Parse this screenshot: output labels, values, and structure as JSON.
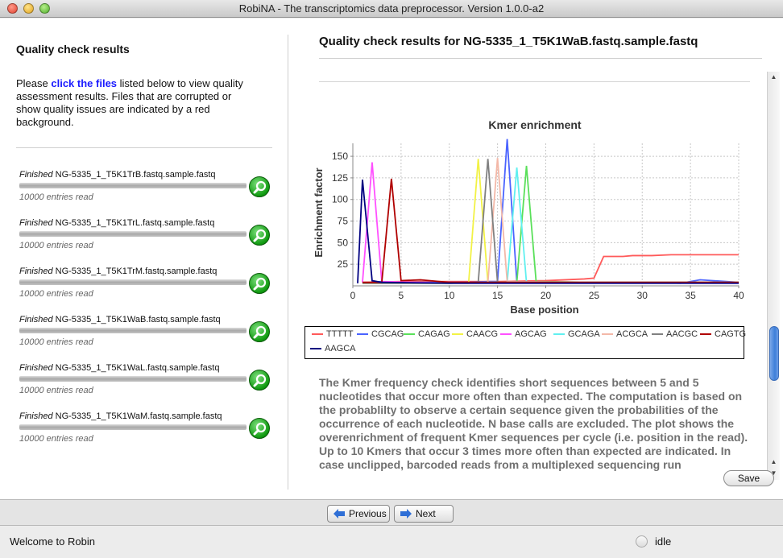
{
  "window": {
    "title": "RobiNA - The transcriptomics data preprocessor. Version 1.0.0-a2"
  },
  "left": {
    "title": "Quality check results",
    "intro_before": "Please ",
    "intro_link": "click the files",
    "intro_after": " listed below to view quality assessment results. Files that are corrupted or show quality issues are indicated by a red background.",
    "files": [
      {
        "status": "Finished",
        "name": "NG-5335_1_T5K1TrB.fastq.sample.fastq",
        "count": "10000 entries read"
      },
      {
        "status": "Finished",
        "name": "NG-5335_1_T5K1TrL.fastq.sample.fastq",
        "count": "10000 entries read"
      },
      {
        "status": "Finished",
        "name": "NG-5335_1_T5K1TrM.fastq.sample.fastq",
        "count": "10000 entries read"
      },
      {
        "status": "Finished",
        "name": "NG-5335_1_T5K1WaB.fastq.sample.fastq",
        "count": "10000 entries read"
      },
      {
        "status": "Finished",
        "name": "NG-5335_1_T5K1WaL.fastq.sample.fastq",
        "count": "10000 entries read"
      },
      {
        "status": "Finished",
        "name": "NG-5335_1_T5K1WaM.fastq.sample.fastq",
        "count": "10000 entries read"
      }
    ]
  },
  "right": {
    "title": "Quality check results for NG-5335_1_T5K1WaB.fastq.sample.fastq",
    "description": "The Kmer frequency check identifies short sequences between 5 and 5 nucleotides that occur more often than expected. The computation is based on the probablilty to observe a certain sequence given the probabilities of the occurrence of each nucleotide. N base calls are excluded. The plot shows the overenrichment of frequent Kmer sequences per cycle (i.e. position in the read). Up to 10 Kmers that occur 3 times more often than expected are indicated. In case unclipped, barcoded reads from a multiplexed sequencing run",
    "save_label": "Save"
  },
  "nav": {
    "previous_label": "Previous",
    "next_label": "Next"
  },
  "status": {
    "message": "Welcome to Robin",
    "state": "idle"
  },
  "chart_data": {
    "type": "line",
    "title": "Kmer enrichment",
    "xlabel": "Base position",
    "ylabel": "Enrichment factor",
    "xlim": [
      0,
      40
    ],
    "ylim": [
      0,
      165
    ],
    "xticks": [
      0,
      5,
      10,
      15,
      20,
      25,
      30,
      35,
      40
    ],
    "yticks": [
      25,
      50,
      75,
      100,
      125,
      150
    ],
    "grid": true,
    "legend_position": "bottom",
    "series": [
      {
        "name": "TTTTT",
        "color": "#ff5a5a",
        "x": [
          1,
          5,
          10,
          15,
          20,
          24,
          25,
          26,
          28,
          29,
          31,
          33,
          35,
          40
        ],
        "y": [
          4,
          5,
          5,
          5,
          6,
          8,
          9,
          34,
          34,
          35,
          35,
          36,
          36,
          36
        ]
      },
      {
        "name": "CGCAG",
        "color": "#4a63ff",
        "x": [
          1,
          3,
          4,
          8,
          12,
          14,
          15,
          16,
          17,
          18,
          22,
          30,
          34,
          36,
          40
        ],
        "y": [
          3,
          5,
          4,
          4,
          4,
          5,
          5,
          170,
          5,
          4,
          4,
          4,
          3,
          7,
          4
        ]
      },
      {
        "name": "CAGAG",
        "color": "#5ae05a",
        "x": [
          1,
          5,
          10,
          14,
          16,
          17,
          18,
          19,
          25,
          30,
          40
        ],
        "y": [
          3,
          3,
          3,
          4,
          4,
          4,
          139,
          5,
          4,
          4,
          4
        ]
      },
      {
        "name": "CAACG",
        "color": "#f2f245",
        "x": [
          1,
          10,
          12,
          13,
          14,
          20,
          40
        ],
        "y": [
          3,
          3,
          3,
          147,
          4,
          4,
          4
        ]
      },
      {
        "name": "AGCAG",
        "color": "#ff50ff",
        "x": [
          1,
          2,
          3,
          10,
          20,
          40
        ],
        "y": [
          4,
          143,
          5,
          3,
          3,
          3
        ]
      },
      {
        "name": "GCAGA",
        "color": "#60f0f0",
        "x": [
          1,
          10,
          16,
          17,
          18,
          25,
          40
        ],
        "y": [
          3,
          3,
          4,
          137,
          4,
          4,
          4
        ]
      },
      {
        "name": "ACGCA",
        "color": "#f3b8a8",
        "x": [
          1,
          10,
          14,
          15,
          16,
          25,
          40
        ],
        "y": [
          3,
          3,
          4,
          148,
          5,
          4,
          4
        ]
      },
      {
        "name": "AACGC",
        "color": "#808080",
        "x": [
          1,
          10,
          13,
          14,
          15,
          25,
          40
        ],
        "y": [
          3,
          3,
          4,
          147,
          4,
          4,
          4
        ]
      },
      {
        "name": "CAGTG",
        "color": "#b00000",
        "x": [
          1,
          3,
          4,
          5,
          7,
          10,
          20,
          40
        ],
        "y": [
          4,
          4,
          124,
          6,
          7,
          4,
          4,
          4
        ]
      },
      {
        "name": "AAGCA",
        "color": "#000080",
        "x": [
          0.5,
          1,
          2,
          3,
          10,
          40
        ],
        "y": [
          3,
          123,
          6,
          4,
          3,
          3
        ]
      }
    ]
  }
}
